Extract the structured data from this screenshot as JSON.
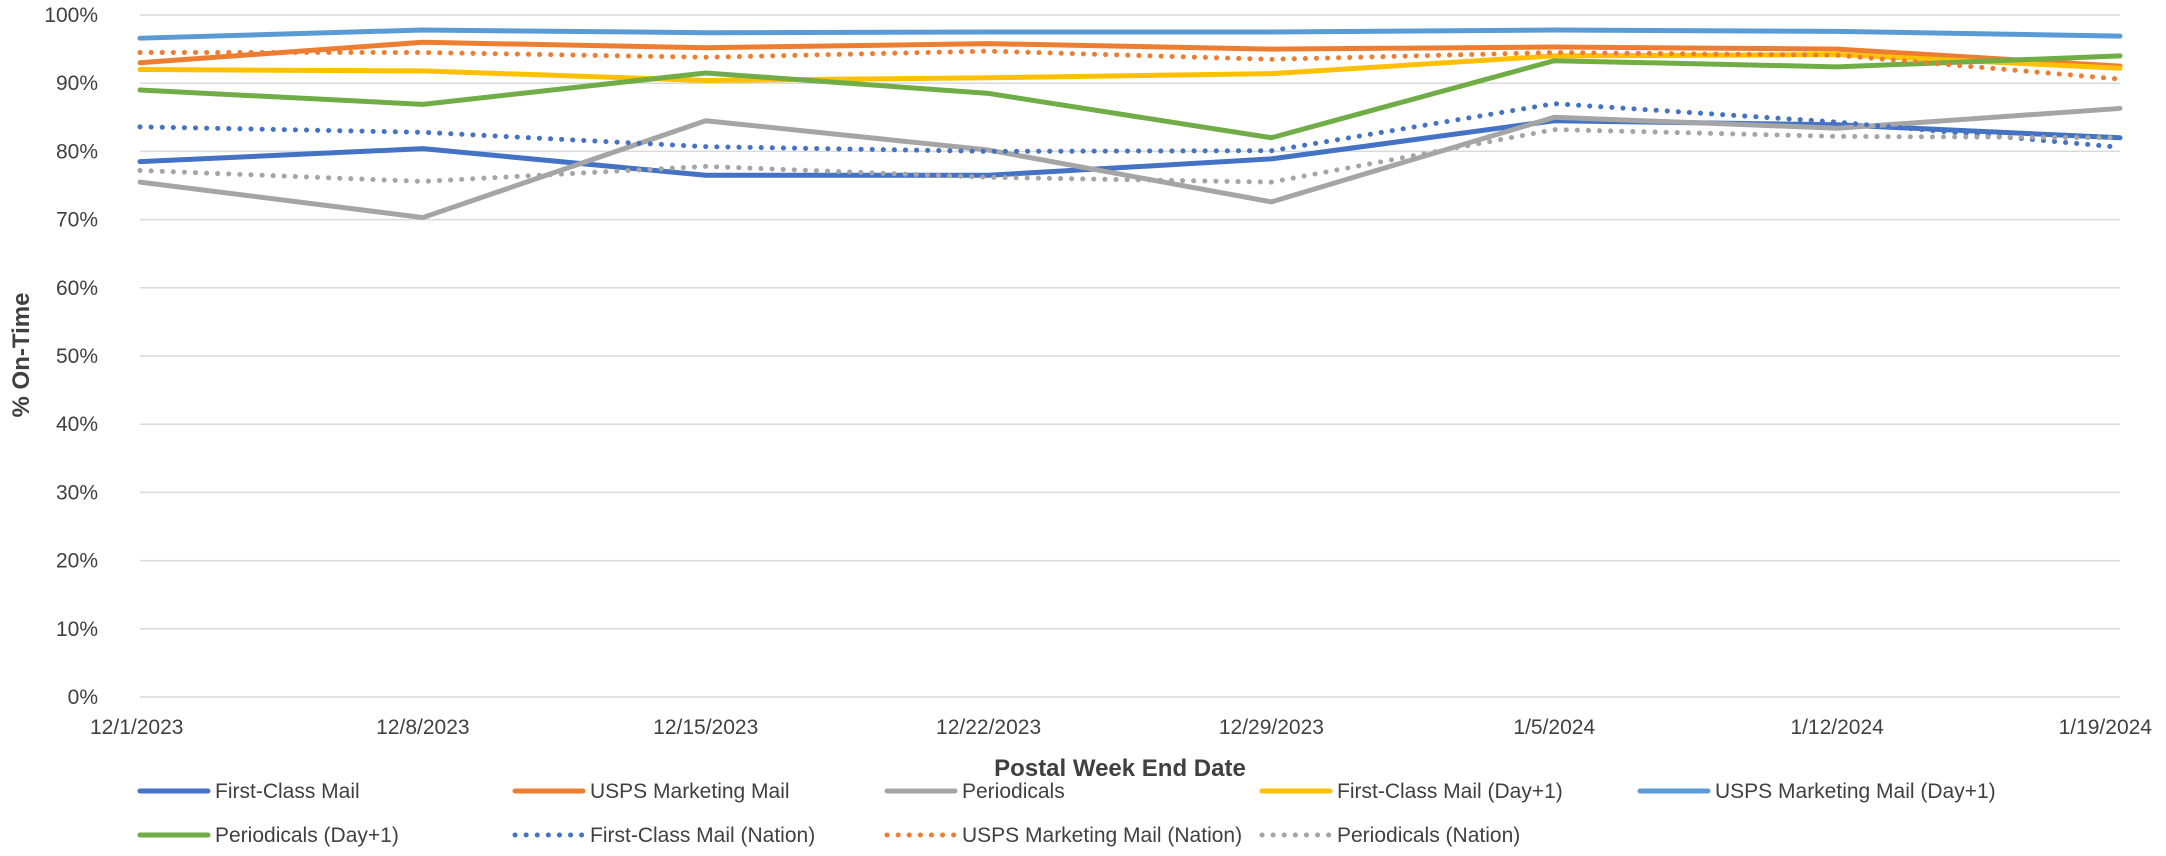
{
  "chart_data": {
    "type": "line",
    "xlabel": "Postal Week End Date",
    "ylabel": "% On-Time",
    "ylim": [
      0,
      100
    ],
    "y_ticks": [
      "0%",
      "10%",
      "20%",
      "30%",
      "40%",
      "50%",
      "60%",
      "70%",
      "80%",
      "90%",
      "100%"
    ],
    "y_tick_values": [
      0,
      10,
      20,
      30,
      40,
      50,
      60,
      70,
      80,
      90,
      100
    ],
    "grid": "horizontal",
    "legend_position": "bottom",
    "x": [
      "12/1/2023",
      "12/8/2023",
      "12/15/2023",
      "12/22/2023",
      "12/29/2023",
      "1/5/2024",
      "1/12/2024",
      "1/19/2024"
    ],
    "series": [
      {
        "name": "First-Class Mail",
        "color": "#4472C4",
        "style": "solid",
        "values": [
          78.5,
          80.4,
          76.5,
          76.5,
          78.9,
          84.5,
          83.9,
          82.0
        ]
      },
      {
        "name": "USPS Marketing Mail",
        "color": "#ED7D31",
        "style": "solid",
        "values": [
          93.0,
          96.0,
          95.2,
          95.8,
          95.0,
          95.3,
          95.0,
          92.5
        ]
      },
      {
        "name": "Periodicals",
        "color": "#A5A5A5",
        "style": "solid",
        "values": [
          75.5,
          70.3,
          84.5,
          80.2,
          72.6,
          85.0,
          83.4,
          86.3
        ]
      },
      {
        "name": "First-Class Mail (Day+1)",
        "color": "#FFC000",
        "style": "solid",
        "values": [
          92.0,
          91.8,
          90.4,
          90.8,
          91.4,
          94.0,
          94.2,
          92.2
        ]
      },
      {
        "name": "USPS Marketing Mail (Day+1)",
        "color": "#5B9BD5",
        "style": "solid",
        "values": [
          96.6,
          97.8,
          97.4,
          97.5,
          97.5,
          97.8,
          97.6,
          96.9
        ]
      },
      {
        "name": "Periodicals (Day+1)",
        "color": "#70AD47",
        "style": "solid",
        "values": [
          89.0,
          86.9,
          91.5,
          88.5,
          82.0,
          93.3,
          92.4,
          94.0
        ]
      },
      {
        "name": "First-Class Mail (Nation)",
        "color": "#4472C4",
        "style": "dotted",
        "values": [
          83.6,
          82.8,
          80.7,
          80.0,
          80.1,
          87.0,
          84.3,
          80.6
        ]
      },
      {
        "name": "USPS Marketing Mail (Nation)",
        "color": "#ED7D31",
        "style": "dotted",
        "values": [
          94.5,
          94.5,
          93.8,
          94.7,
          93.5,
          94.5,
          94.1,
          90.6
        ]
      },
      {
        "name": "Periodicals (Nation)",
        "color": "#A5A5A5",
        "style": "dotted",
        "values": [
          77.2,
          75.6,
          77.8,
          76.2,
          75.5,
          83.2,
          82.2,
          82.0
        ]
      }
    ]
  }
}
